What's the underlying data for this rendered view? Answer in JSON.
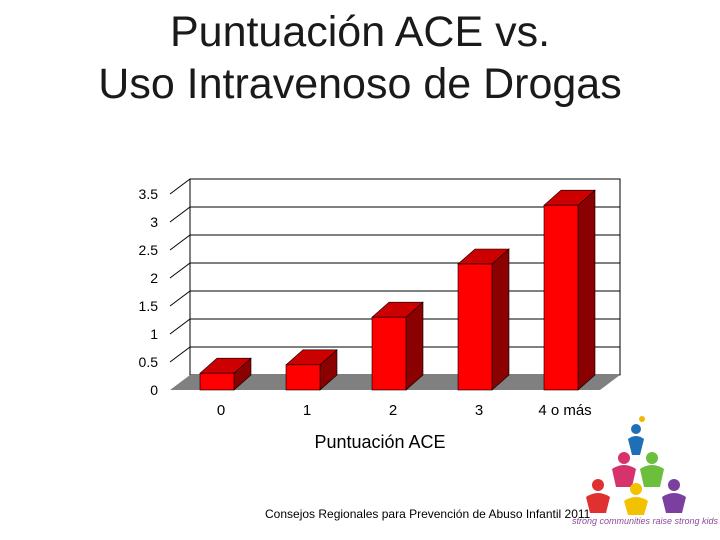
{
  "title": {
    "line1": "Puntuación ACE vs.",
    "line2": "Uso Intravenoso de Drogas"
  },
  "chart_data": {
    "type": "bar",
    "title": "Puntuación ACE vs. Uso Intravenoso de Drogas",
    "xlabel": "Puntuación ACE",
    "ylabel": "",
    "categories": [
      "0",
      "1",
      "2",
      "3",
      "4 o más"
    ],
    "values": [
      0.3,
      0.45,
      1.3,
      2.25,
      3.3
    ],
    "ylim": [
      0,
      3.5
    ],
    "yticks": [
      "0",
      "0.5",
      "1",
      "1.5",
      "2",
      "2.5",
      "3",
      "3.5"
    ],
    "grid": true,
    "legend": "none",
    "colors": {
      "bar_front": "#ff0000",
      "bar_top": "#cc0000",
      "bar_side": "#8b0000",
      "floor": "#808080",
      "grid": "#000000"
    }
  },
  "footer": "Consejos Regionales para Prevención de Abuso Infantil 2011",
  "logo": {
    "text": "strong communities raise strong kids",
    "icon": "people-pyramid-logo"
  }
}
